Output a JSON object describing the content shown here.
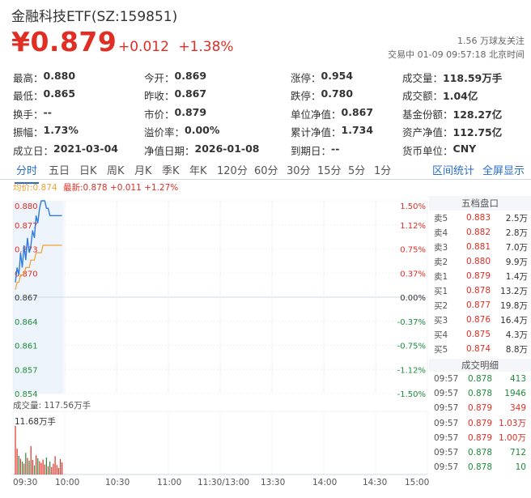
{
  "header": {
    "title": "金融科技ETF(SZ:159851)",
    "price": "¥0.879",
    "change": "+0.012",
    "change_pct": "+1.38%",
    "followers": "1.56 万球友关注",
    "status": "交易中 01-09 09:57:18 北京时间"
  },
  "stats": [
    [
      {
        "label": "最高：",
        "value": "0.880",
        "color": "up"
      },
      {
        "label": "今开：",
        "value": "0.869",
        "color": "up"
      },
      {
        "label": "涨停：",
        "value": "0.954",
        "color": "up"
      },
      {
        "label": "成交量：",
        "value": "118.59万手",
        "color": ""
      }
    ],
    [
      {
        "label": "最低：",
        "value": "0.865",
        "color": "down"
      },
      {
        "label": "昨收：",
        "value": "0.867",
        "color": ""
      },
      {
        "label": "跌停：",
        "value": "0.780",
        "color": "down"
      },
      {
        "label": "成交额：",
        "value": "1.04亿",
        "color": ""
      }
    ],
    [
      {
        "label": "换手：",
        "value": "--",
        "color": ""
      },
      {
        "label": "市价：",
        "value": "0.879",
        "color": ""
      },
      {
        "label": "单位净值：",
        "value": "0.867",
        "color": ""
      },
      {
        "label": "基金份额：",
        "value": "128.27亿",
        "color": ""
      }
    ],
    [
      {
        "label": "振幅：",
        "value": "1.73%",
        "color": ""
      },
      {
        "label": "溢价率：",
        "value": "0.00%",
        "color": ""
      },
      {
        "label": "累计净值：",
        "value": "1.734",
        "color": ""
      },
      {
        "label": "资产净值：",
        "value": "112.75亿",
        "color": ""
      }
    ],
    [
      {
        "label": "成立日：",
        "value": "2021-03-04",
        "color": ""
      },
      {
        "label": "净值日期：",
        "value": "2026-01-08",
        "color": ""
      },
      {
        "label": "到期日：",
        "value": "--",
        "color": ""
      },
      {
        "label": "货币单位：",
        "value": "CNY",
        "color": ""
      }
    ]
  ],
  "tabs": [
    "分时",
    "五日",
    "日K",
    "周K",
    "月K",
    "季K",
    "年K",
    "120分",
    "60分",
    "30分",
    "15分",
    "5分",
    "1分"
  ],
  "tab_links": [
    "区间统计",
    "全屏显示"
  ],
  "legend": {
    "avg": "均价:0.874",
    "last_label": "最新:",
    "last_value": "0.878",
    "last_change": "+0.011 +1.27%"
  },
  "chart_data": {
    "type": "line",
    "y_price_ticks": [
      "0.880",
      "0.877",
      "0.873",
      "0.870",
      "0.867",
      "0.864",
      "0.861",
      "0.857",
      "0.854"
    ],
    "y_pct_ticks": [
      "1.50%",
      "1.12%",
      "0.75%",
      "0.37%",
      "0.00%",
      "-0.37%",
      "-0.75%",
      "-1.12%",
      "-1.50%"
    ],
    "ylim": [
      0.854,
      0.88
    ],
    "prev_close": 0.867,
    "x_ticks": [
      "09:30",
      "10:00",
      "10:30",
      "11:00",
      "11:30/13:00",
      "13:30",
      "14:00",
      "14:30",
      "15:00"
    ],
    "session_minutes": 240,
    "price": [
      0.869,
      0.871,
      0.87,
      0.873,
      0.871,
      0.874,
      0.872,
      0.875,
      0.873,
      0.874,
      0.876,
      0.875,
      0.878,
      0.877,
      0.879,
      0.88,
      0.88,
      0.88,
      0.879,
      0.879,
      0.878,
      0.878,
      0.878,
      0.878,
      0.878,
      0.878,
      0.878,
      0.878
    ],
    "avg_price": [
      0.868,
      0.869,
      0.869,
      0.87,
      0.87,
      0.87,
      0.871,
      0.871,
      0.871,
      0.872,
      0.872,
      0.872,
      0.873,
      0.873,
      0.873,
      0.873,
      0.874,
      0.874,
      0.874,
      0.874,
      0.874,
      0.874,
      0.874,
      0.874,
      0.874,
      0.874,
      0.874,
      0.874
    ],
    "volume_label": "成交量: 117.56万手",
    "volume_max_label": "11.68万手",
    "volume_ylim": [
      0,
      11.68
    ],
    "volume": [
      11.68,
      6.2,
      4.5,
      3.8,
      3.1,
      2.6,
      5.2,
      4.0,
      3.3,
      6.8,
      3.5,
      2.2,
      4.6,
      3.9,
      3.2,
      2.8,
      3.6,
      2.4,
      4.1,
      2.0,
      3.1,
      1.8,
      2.6,
      4.4,
      2.3,
      1.6,
      3.7,
      2.9
    ]
  },
  "order_book": {
    "title": "五档盘口",
    "rows": [
      {
        "k": "卖5",
        "p": "0.883",
        "v": "2.5万",
        "c": "up"
      },
      {
        "k": "卖4",
        "p": "0.882",
        "v": "2.8万",
        "c": "up"
      },
      {
        "k": "卖3",
        "p": "0.881",
        "v": "7.0万",
        "c": "up"
      },
      {
        "k": "卖2",
        "p": "0.880",
        "v": "9.9万",
        "c": "up"
      },
      {
        "k": "卖1",
        "p": "0.879",
        "v": "1.4万",
        "c": "up"
      },
      {
        "k": "买1",
        "p": "0.878",
        "v": "13.2万",
        "c": "up"
      },
      {
        "k": "买2",
        "p": "0.877",
        "v": "19.8万",
        "c": "up"
      },
      {
        "k": "买3",
        "p": "0.876",
        "v": "16.4万",
        "c": "up"
      },
      {
        "k": "买4",
        "p": "0.875",
        "v": "4.3万",
        "c": "up"
      },
      {
        "k": "买5",
        "p": "0.874",
        "v": "8.8万",
        "c": "up"
      }
    ]
  },
  "ticks": {
    "title": "成交明细",
    "rows": [
      {
        "t": "09:57",
        "p": "0.878",
        "v": "413",
        "c": "down"
      },
      {
        "t": "09:57",
        "p": "0.878",
        "v": "1946",
        "c": "down"
      },
      {
        "t": "09:57",
        "p": "0.879",
        "v": "349",
        "c": "up"
      },
      {
        "t": "09:57",
        "p": "0.879",
        "v": "1.03万",
        "c": "up"
      },
      {
        "t": "09:57",
        "p": "0.879",
        "v": "1.00万",
        "c": "up"
      },
      {
        "t": "09:57",
        "p": "0.878",
        "v": "712",
        "c": "down"
      },
      {
        "t": "09:57",
        "p": "0.878",
        "v": "10",
        "c": "down"
      }
    ]
  }
}
